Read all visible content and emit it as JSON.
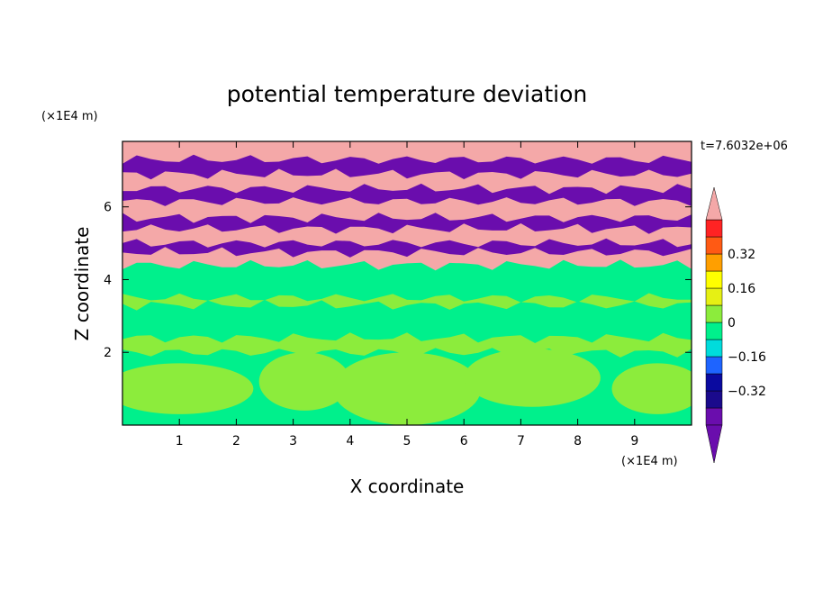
{
  "chart_data": {
    "type": "heatmap",
    "title": "potential temperature deviation",
    "xlabel": "X coordinate",
    "ylabel": "Z coordinate",
    "x_scale_label": "(×1E4 m)",
    "y_scale_label": "(×1E4 m)",
    "time_label": "t=7.6032e+06",
    "xlim": [
      0,
      10
    ],
    "ylim": [
      0,
      7.8
    ],
    "x_ticks": [
      "1",
      "2",
      "3",
      "4",
      "5",
      "6",
      "7",
      "8",
      "9"
    ],
    "y_ticks": [
      "2",
      "4",
      "6"
    ],
    "colorbar": {
      "tick_labels": [
        "0.32",
        "0.16",
        "0",
        "-0.16",
        "-0.32"
      ],
      "tick_values": [
        0.32,
        0.16,
        0,
        -0.16,
        -0.32
      ],
      "levels": [
        -0.48,
        -0.4,
        -0.32,
        -0.24,
        -0.16,
        -0.08,
        0,
        0.08,
        0.16,
        0.24,
        0.32,
        0.4,
        0.48
      ],
      "colors": [
        "#6a0dad",
        "#1a0a8c",
        "#0a0aa0",
        "#1e64ff",
        "#00dcdc",
        "#00f08c",
        "#8cec3c",
        "#e6f014",
        "#ffff00",
        "#ff9f00",
        "#ff5a14",
        "#ff2323",
        "#f4a8a8"
      ],
      "over_color": "#f4a8a8",
      "under_color": "#6a0dad"
    },
    "bands": [
      {
        "z_top": 7.8,
        "z_bottom": 7.3,
        "value": 0.5
      },
      {
        "z_top": 7.3,
        "z_bottom": 6.9,
        "value": -0.5
      },
      {
        "z_top": 6.9,
        "z_bottom": 6.5,
        "value": 0.5
      },
      {
        "z_top": 6.5,
        "z_bottom": 6.15,
        "value": -0.5
      },
      {
        "z_top": 6.15,
        "z_bottom": 5.7,
        "value": 0.5
      },
      {
        "z_top": 5.7,
        "z_bottom": 5.4,
        "value": -0.5
      },
      {
        "z_top": 5.4,
        "z_bottom": 5.0,
        "value": 0.5
      },
      {
        "z_top": 5.0,
        "z_bottom": 4.75,
        "value": -0.5
      },
      {
        "z_top": 4.75,
        "z_bottom": 4.4,
        "value": 0.5
      },
      {
        "z_top": 4.4,
        "z_bottom": 3.5,
        "value": -0.04
      },
      {
        "z_top": 3.5,
        "z_bottom": 3.3,
        "value": 0.04
      },
      {
        "z_top": 3.3,
        "z_bottom": 2.4,
        "value": -0.04
      },
      {
        "z_top": 2.4,
        "z_bottom": 2.0,
        "value": 0.04
      },
      {
        "z_top": 2.0,
        "z_bottom": 0.0,
        "value": -0.04
      }
    ],
    "lower_patches": [
      {
        "cx": 1.0,
        "cz": 1.0,
        "rx": 1.3,
        "rz": 0.7,
        "value": 0.04
      },
      {
        "cx": 3.2,
        "cz": 1.2,
        "rx": 0.8,
        "rz": 0.8,
        "value": 0.04
      },
      {
        "cx": 5.0,
        "cz": 1.0,
        "rx": 1.3,
        "rz": 1.0,
        "value": 0.04
      },
      {
        "cx": 7.2,
        "cz": 1.3,
        "rx": 1.2,
        "rz": 0.8,
        "value": 0.04
      },
      {
        "cx": 9.4,
        "cz": 1.0,
        "rx": 0.8,
        "rz": 0.7,
        "value": 0.04
      }
    ],
    "grid": false
  }
}
